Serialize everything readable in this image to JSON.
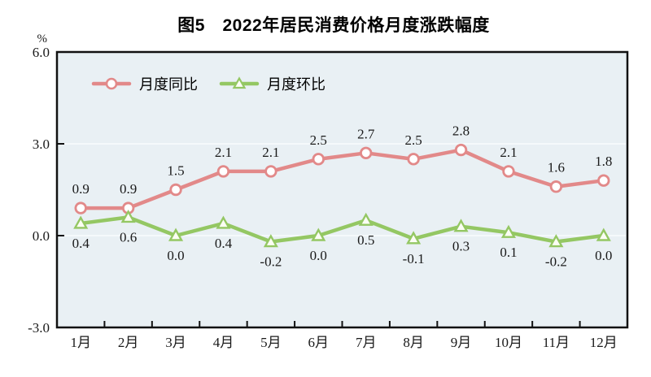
{
  "page": {
    "background_color": "#ffffff"
  },
  "chart_data": {
    "type": "line",
    "title": "图5　2022年居民消费价格月度涨跌幅度",
    "ylabel": "%",
    "ylim": [
      -3.0,
      6.0
    ],
    "yticks": [
      6.0,
      3.0,
      0.0,
      -3.0
    ],
    "ytick_labels": [
      "6.0",
      "3.0",
      "0.0",
      "-3.0"
    ],
    "grid_values": [
      3.0,
      0.0
    ],
    "grid_on": true,
    "categories": [
      "1月",
      "2月",
      "3月",
      "4月",
      "5月",
      "6月",
      "7月",
      "8月",
      "9月",
      "10月",
      "11月",
      "12月"
    ],
    "series": [
      {
        "name": "月度同比",
        "marker": "circle",
        "color": "#e28989",
        "marker_fill": "#ffffff",
        "label_position": "above",
        "values": [
          0.9,
          0.9,
          1.5,
          2.1,
          2.1,
          2.5,
          2.7,
          2.5,
          2.8,
          2.1,
          1.6,
          1.8
        ]
      },
      {
        "name": "月度环比",
        "marker": "triangle",
        "color": "#94c763",
        "marker_fill": "#fbfdf4",
        "label_position": "below",
        "values": [
          0.4,
          0.6,
          0.0,
          0.4,
          -0.2,
          0.0,
          0.5,
          -0.1,
          0.3,
          0.1,
          -0.2,
          0.0
        ]
      }
    ],
    "legend_position": "top-left-inside",
    "plot_background": "#e9f0f4",
    "axis_color": "#111111",
    "gridline_color": "#f9fcfd",
    "label_color": "#1a1a1a"
  }
}
